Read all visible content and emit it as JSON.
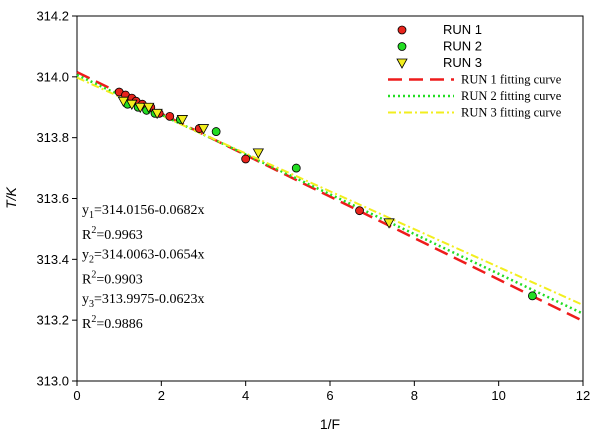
{
  "chart_data": {
    "type": "scatter",
    "xlabel": "1/F",
    "ylabel": "T/K",
    "xlim": [
      0,
      12
    ],
    "ylim": [
      313.0,
      314.2
    ],
    "x_ticks": [
      0,
      2,
      4,
      6,
      8,
      10,
      12
    ],
    "y_ticks": [
      313.0,
      313.2,
      313.4,
      313.6,
      313.8,
      314.0,
      314.2
    ],
    "x_tick_labels": [
      "0",
      "2",
      "4",
      "6",
      "8",
      "10",
      "12"
    ],
    "y_tick_labels": [
      "313.0",
      "313.2",
      "313.4",
      "313.6",
      "313.8",
      "314.0",
      "314.2"
    ],
    "grid": false,
    "legend_position": "top-right",
    "series": [
      {
        "name": "RUN 1",
        "marker": "circle",
        "color": "#e8241c",
        "points": [
          {
            "x": 1.0,
            "y": 313.95
          },
          {
            "x": 1.15,
            "y": 313.94
          },
          {
            "x": 1.3,
            "y": 313.93
          },
          {
            "x": 1.4,
            "y": 313.92
          },
          {
            "x": 1.55,
            "y": 313.91
          },
          {
            "x": 1.75,
            "y": 313.9
          },
          {
            "x": 1.95,
            "y": 313.88
          },
          {
            "x": 2.2,
            "y": 313.87
          },
          {
            "x": 2.9,
            "y": 313.83
          },
          {
            "x": 4.0,
            "y": 313.73
          },
          {
            "x": 6.7,
            "y": 313.56
          }
        ]
      },
      {
        "name": "RUN 2",
        "marker": "circle",
        "color": "#22dd22",
        "points": [
          {
            "x": 1.2,
            "y": 313.91
          },
          {
            "x": 1.45,
            "y": 313.9
          },
          {
            "x": 1.65,
            "y": 313.89
          },
          {
            "x": 1.85,
            "y": 313.88
          },
          {
            "x": 2.45,
            "y": 313.86
          },
          {
            "x": 3.3,
            "y": 313.82
          },
          {
            "x": 5.2,
            "y": 313.7
          },
          {
            "x": 10.8,
            "y": 313.28
          }
        ]
      },
      {
        "name": "RUN 3",
        "marker": "triangle-down",
        "color": "#f2ee1e",
        "points": [
          {
            "x": 1.1,
            "y": 313.92
          },
          {
            "x": 1.3,
            "y": 313.91
          },
          {
            "x": 1.5,
            "y": 313.9
          },
          {
            "x": 1.7,
            "y": 313.9
          },
          {
            "x": 1.9,
            "y": 313.88
          },
          {
            "x": 2.5,
            "y": 313.86
          },
          {
            "x": 3.0,
            "y": 313.83
          },
          {
            "x": 4.3,
            "y": 313.75
          },
          {
            "x": 7.4,
            "y": 313.52
          }
        ]
      }
    ],
    "fits": [
      {
        "name": "RUN 1 fitting curve",
        "intercept": 314.0156,
        "slope": -0.0682,
        "color": "#ee1c1c",
        "dash": "14 7",
        "width": 2.5
      },
      {
        "name": "RUN 2 fitting curve",
        "intercept": 314.0063,
        "slope": -0.0654,
        "color": "#22dd22",
        "dash": "2 3",
        "width": 2.5
      },
      {
        "name": "RUN 3 fitting curve",
        "intercept": 313.9975,
        "slope": -0.0623,
        "color": "#f2ee1e",
        "dash": "8 3 2 3",
        "width": 2
      }
    ],
    "equations": [
      {
        "y_sym": "y",
        "sub": "1",
        "rhs": "=314.0156-0.0682x",
        "r2_label": "R",
        "r2_sup": "2",
        "r2_value": "=0.9963"
      },
      {
        "y_sym": "y",
        "sub": "2",
        "rhs": "=314.0063-0.0654x",
        "r2_label": "R",
        "r2_sup": "2",
        "r2_value": "=0.9903"
      },
      {
        "y_sym": "y",
        "sub": "3",
        "rhs": "=313.9975-0.0623x",
        "r2_label": "R",
        "r2_sup": "2",
        "r2_value": "=0.9886"
      }
    ]
  }
}
